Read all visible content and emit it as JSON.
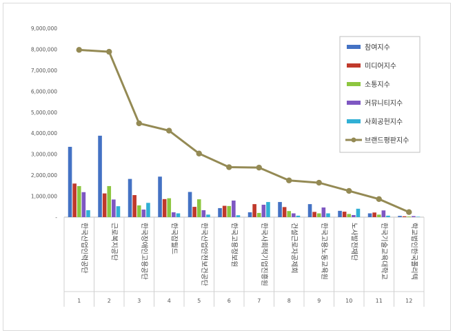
{
  "chart_data": {
    "type": "bar",
    "categories": [
      "한국산업인력공단",
      "근로복지공단",
      "한국장애인고용공단",
      "한국잡월드",
      "한국산업안전보건공단",
      "한국고용정보원",
      "한국사회적기업진흥원",
      "건설근로자공제회",
      "한국고용노동교육원",
      "노사발전재단",
      "한국기술교육대학교",
      "학교법인한국폴리텍"
    ],
    "index_labels": [
      "1",
      "2",
      "3",
      "4",
      "5",
      "6",
      "7",
      "8",
      "9",
      "10",
      "11",
      "12"
    ],
    "yticks": [
      "9,000,000",
      "8,000,000",
      "7,000,000",
      "6,000,000",
      "5,000,000",
      "4,000,000",
      "3,000,000",
      "2,000,000",
      "1,000,000",
      "-"
    ],
    "ylim": [
      0,
      9000000
    ],
    "series": [
      {
        "name": "참여지수",
        "color": "#4472C4",
        "kind": "bar",
        "values": [
          3350000,
          3880000,
          1820000,
          1930000,
          1200000,
          430000,
          230000,
          720000,
          620000,
          300000,
          180000,
          60000
        ]
      },
      {
        "name": "미디어지수",
        "color": "#C0392B",
        "kind": "bar",
        "values": [
          1600000,
          1130000,
          1050000,
          860000,
          490000,
          540000,
          620000,
          480000,
          250000,
          260000,
          220000,
          40000
        ]
      },
      {
        "name": "소통지수",
        "color": "#8DC63F",
        "kind": "bar",
        "values": [
          1480000,
          1480000,
          560000,
          900000,
          850000,
          530000,
          200000,
          290000,
          180000,
          150000,
          120000,
          30000
        ]
      },
      {
        "name": "커뮤니티지수",
        "color": "#7E57C2",
        "kind": "bar",
        "values": [
          1190000,
          840000,
          360000,
          230000,
          330000,
          790000,
          590000,
          180000,
          460000,
          100000,
          320000,
          50000
        ]
      },
      {
        "name": "사회공헌지수",
        "color": "#31B0D5",
        "kind": "bar",
        "values": [
          330000,
          520000,
          680000,
          180000,
          120000,
          90000,
          720000,
          70000,
          180000,
          400000,
          70000,
          20000
        ]
      },
      {
        "name": "브랜드평판지수",
        "color": "#948A54",
        "kind": "line",
        "values": [
          7970000,
          7880000,
          4470000,
          4120000,
          3030000,
          2380000,
          2360000,
          1750000,
          1640000,
          1250000,
          860000,
          240000
        ]
      }
    ],
    "legend": "top-right",
    "grid": false
  }
}
